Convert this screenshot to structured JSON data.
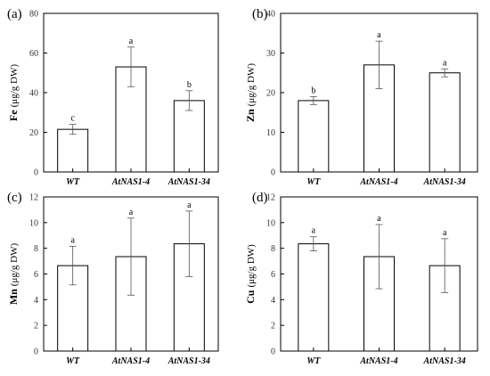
{
  "chart_data": [
    {
      "type": "bar",
      "panel": "(a)",
      "ylabel_element": "Fe",
      "ylabel_unit": "(μg/g DW)",
      "categories": [
        "WT",
        "AtNAS1-4",
        "AtNAS1-34"
      ],
      "values": [
        21.5,
        53,
        36
      ],
      "errors": [
        2.5,
        10,
        5
      ],
      "letters": [
        "c",
        "a",
        "b"
      ],
      "ylim": [
        0,
        80
      ],
      "yticks": [
        "0",
        "20",
        "40",
        "60",
        "80"
      ]
    },
    {
      "type": "bar",
      "panel": "(b)",
      "ylabel_element": "Zn",
      "ylabel_unit": "(μg/g DW)",
      "categories": [
        "WT",
        "AtNAS1-4",
        "AtNAS1-34"
      ],
      "values": [
        18,
        27,
        25
      ],
      "errors": [
        1,
        6,
        1
      ],
      "letters": [
        "b",
        "a",
        "a"
      ],
      "ylim": [
        0,
        40
      ],
      "yticks": [
        "0",
        "10",
        "20",
        "30",
        "40"
      ]
    },
    {
      "type": "bar",
      "panel": "(c)",
      "ylabel_element": "Mn",
      "ylabel_unit": "(μg/g DW)",
      "categories": [
        "WT",
        "AtNAS1-4",
        "AtNAS1-34"
      ],
      "values": [
        6.65,
        7.35,
        8.35
      ],
      "errors": [
        1.5,
        3.0,
        2.55
      ],
      "letters": [
        "a",
        "a",
        "a"
      ],
      "ylim": [
        0,
        12
      ],
      "yticks": [
        "0",
        "2",
        "4",
        "6",
        "8",
        "10",
        "12"
      ]
    },
    {
      "type": "bar",
      "panel": "(d)",
      "ylabel_element": "Cu",
      "ylabel_unit": "(μg/g DW)",
      "categories": [
        "WT",
        "AtNAS1-4",
        "AtNAS1-34"
      ],
      "values": [
        8.35,
        7.35,
        6.65
      ],
      "errors": [
        0.55,
        2.5,
        2.1
      ],
      "letters": [
        "a",
        "a",
        "a"
      ],
      "ylim": [
        0,
        12
      ],
      "yticks": [
        "0",
        "2",
        "4",
        "6",
        "8",
        "10",
        "12"
      ]
    }
  ]
}
